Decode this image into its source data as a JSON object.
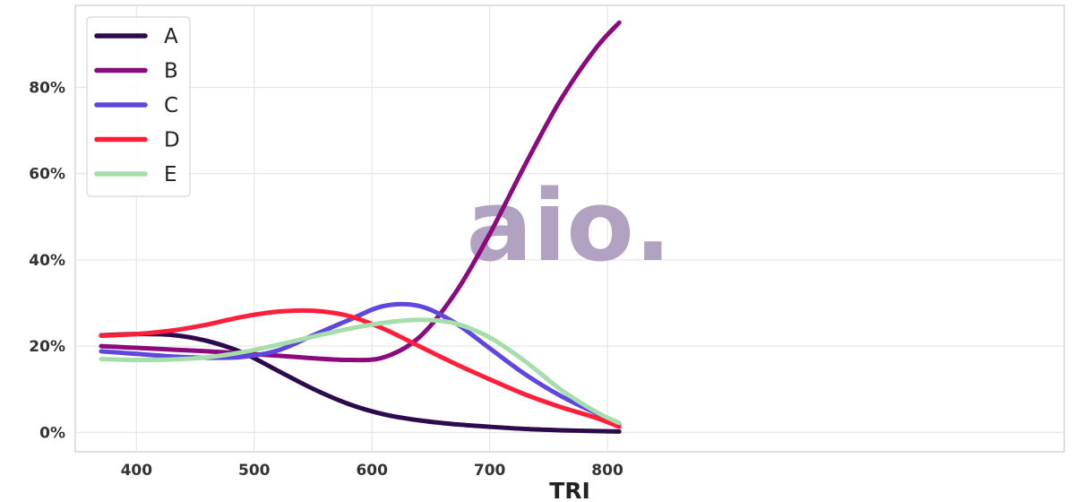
{
  "watermark": "aio.",
  "chart_data": {
    "type": "line",
    "title": "",
    "xlabel": "TRI",
    "ylabel": "",
    "xlim": [
      348,
      1188
    ],
    "ylim": [
      -4.5,
      99
    ],
    "grid": true,
    "legend_position": "top-left",
    "y_format": "percent",
    "x_ticks": [
      400,
      500,
      600,
      700,
      800
    ],
    "x_tick_labels": [
      "400",
      "500",
      "600",
      "700",
      "800"
    ],
    "y_ticks": [
      0,
      20,
      40,
      60,
      80
    ],
    "y_tick_labels": [
      "0%",
      "20%",
      "40%",
      "60%",
      "80%"
    ],
    "x": [
      370,
      400,
      430,
      460,
      490,
      520,
      550,
      580,
      610,
      640,
      670,
      700,
      730,
      760,
      790,
      810
    ],
    "series": [
      {
        "name": "A",
        "color": "#2d0a4e",
        "values": [
          22.5,
          22.8,
          22.6,
          21.2,
          18.5,
          14.3,
          10.1,
          6.6,
          4.2,
          2.8,
          1.9,
          1.3,
          0.8,
          0.5,
          0.3,
          0.2
        ]
      },
      {
        "name": "B",
        "color": "#8b0a7e",
        "values": [
          20.0,
          19.6,
          19.2,
          18.8,
          18.3,
          17.8,
          17.2,
          16.8,
          17.4,
          22.0,
          32.0,
          46.0,
          62.0,
          77.0,
          89.0,
          95.0
        ]
      },
      {
        "name": "C",
        "color": "#5f46dc",
        "values": [
          18.8,
          18.2,
          17.6,
          17.3,
          17.5,
          19.0,
          22.5,
          26.0,
          29.3,
          29.3,
          25.5,
          19.5,
          13.5,
          8.5,
          4.5,
          2.0
        ]
      },
      {
        "name": "D",
        "color": "#ff1f3a",
        "values": [
          22.4,
          22.8,
          23.6,
          25.0,
          26.8,
          28.0,
          28.2,
          27.0,
          24.0,
          20.0,
          16.0,
          12.3,
          8.8,
          5.9,
          3.4,
          1.3
        ]
      },
      {
        "name": "E",
        "color": "#a6deab",
        "values": [
          17.0,
          16.8,
          16.9,
          17.4,
          18.6,
          20.3,
          22.2,
          24.0,
          25.4,
          26.1,
          25.3,
          22.0,
          16.5,
          10.0,
          4.8,
          2.2
        ]
      }
    ]
  }
}
